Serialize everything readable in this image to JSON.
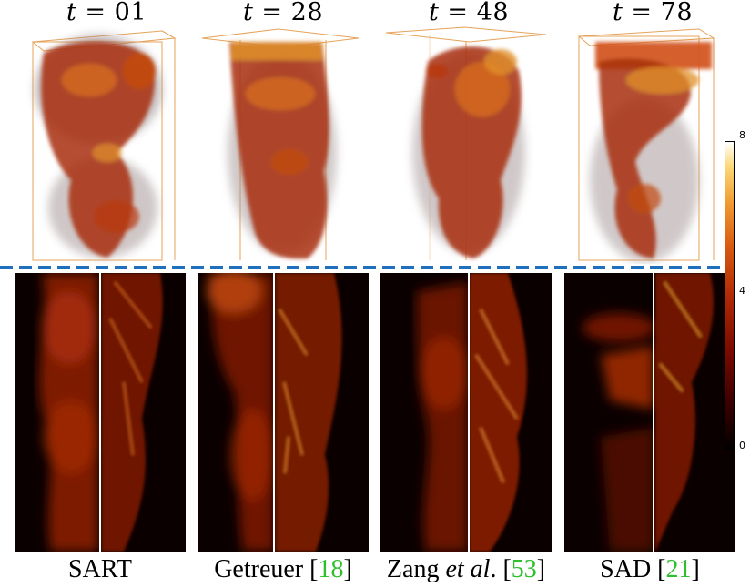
{
  "timesteps": [
    {
      "var": "t",
      "value": "01"
    },
    {
      "var": "t",
      "value": "28"
    },
    {
      "var": "t",
      "value": "48"
    },
    {
      "var": "t",
      "value": "78"
    }
  ],
  "methods": [
    {
      "name": "SART",
      "ref": ""
    },
    {
      "name": "Getreuer ",
      "ref": "18"
    },
    {
      "name": "Zang ",
      "italic": "et al",
      "dot": ". ",
      "ref": "53"
    },
    {
      "name": "SAD ",
      "ref": "21"
    }
  ],
  "colorbar": {
    "max_label": "8",
    "mid_label": "4",
    "min_label": "0",
    "colormap": "black-red-orange-yellow-white"
  },
  "colors": {
    "divider": "#1f6fbf",
    "box_outline": "#e5a35a",
    "citation": "#2dc02d"
  }
}
